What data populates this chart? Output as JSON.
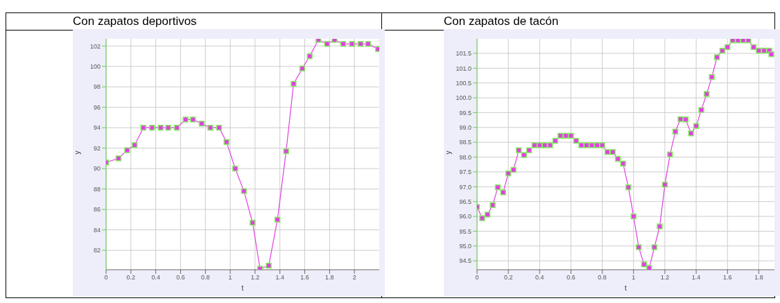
{
  "chart_data": [
    {
      "type": "line",
      "title": "Con zapatos deportivos",
      "xlabel": "t",
      "ylabel": "y",
      "marker": "square",
      "grid": true,
      "line_style": "solid",
      "xlim": [
        0,
        2.2
      ],
      "ylim": [
        80.1,
        102.7
      ],
      "xticks": [
        0,
        0.2,
        0.4,
        0.6,
        0.8,
        1.0,
        1.2,
        1.4,
        1.6,
        1.8,
        2.0
      ],
      "yticks": [
        82,
        84,
        86,
        88,
        90,
        92,
        94,
        96,
        98,
        100,
        102
      ],
      "series": [
        {
          "color": "#e040e0",
          "x": [
            0,
            0.1,
            0.17,
            0.23,
            0.3,
            0.37,
            0.44,
            0.5,
            0.57,
            0.64,
            0.7,
            0.77,
            0.84,
            0.91,
            0.97,
            1.04,
            1.11,
            1.18,
            1.24,
            1.31,
            1.38,
            1.45,
            1.51,
            1.58,
            1.64,
            1.71,
            1.78,
            1.84,
            1.91,
            1.98,
            2.05,
            2.11,
            2.19
          ],
          "values": [
            90.6,
            91.0,
            91.8,
            92.3,
            94.0,
            94.0,
            94.0,
            94.0,
            94.0,
            94.8,
            94.8,
            94.4,
            94.0,
            94.0,
            92.6,
            90.0,
            87.8,
            84.7,
            80.2,
            80.5,
            85.0,
            91.7,
            98.3,
            99.8,
            101.0,
            102.6,
            102.2,
            102.6,
            102.2,
            102.2,
            102.2,
            102.2,
            101.7
          ]
        }
      ]
    },
    {
      "type": "line",
      "title": "Con zapatos de tacón",
      "xlabel": "t",
      "ylabel": "y",
      "marker": "square",
      "grid": true,
      "line_style": "solid",
      "xlim": [
        0,
        1.9
      ],
      "ylim": [
        94.2,
        101.99
      ],
      "xticks": [
        0,
        0.2,
        0.4,
        0.6,
        0.8,
        1.0,
        1.2,
        1.4,
        1.6,
        1.8
      ],
      "yticks": [
        {
          "value": 94.5,
          "label": "94.5"
        },
        {
          "value": 95,
          "label": "95.0"
        },
        {
          "value": 95.5,
          "label": "95.5"
        },
        {
          "value": 96,
          "label": "96.0"
        },
        {
          "value": 96.5,
          "label": "96.5"
        },
        {
          "value": 97,
          "label": "97.0"
        },
        {
          "value": 97.5,
          "label": "97.5"
        },
        {
          "value": 98,
          "label": "98.0"
        },
        {
          "value": 98.5,
          "label": "98.5"
        },
        {
          "value": 99,
          "label": "99.0"
        },
        {
          "value": 99.5,
          "label": "99.5"
        },
        {
          "value": 100,
          "label": "100.0"
        },
        {
          "value": 100.5,
          "label": "100.5"
        },
        {
          "value": 101,
          "label": "101.0"
        },
        {
          "value": 101.5,
          "label": "101.5"
        }
      ],
      "series": [
        {
          "color": "#e040e0",
          "x": [
            0,
            0.033,
            0.067,
            0.1,
            0.133,
            0.167,
            0.2,
            0.233,
            0.267,
            0.3,
            0.333,
            0.367,
            0.4,
            0.433,
            0.467,
            0.5,
            0.533,
            0.567,
            0.6,
            0.633,
            0.667,
            0.7,
            0.733,
            0.767,
            0.8,
            0.833,
            0.867,
            0.9,
            0.933,
            0.967,
            1.0,
            1.033,
            1.067,
            1.1,
            1.133,
            1.167,
            1.2,
            1.233,
            1.267,
            1.3,
            1.333,
            1.367,
            1.4,
            1.433,
            1.467,
            1.5,
            1.533,
            1.567,
            1.6,
            1.633,
            1.667,
            1.7,
            1.733,
            1.767,
            1.8,
            1.833,
            1.867,
            1.88
          ],
          "values": [
            96.32,
            95.94,
            96.06,
            96.38,
            96.98,
            96.81,
            97.45,
            97.57,
            98.23,
            98.07,
            98.23,
            98.4,
            98.4,
            98.4,
            98.4,
            98.55,
            98.72,
            98.72,
            98.72,
            98.55,
            98.4,
            98.4,
            98.4,
            98.4,
            98.4,
            98.17,
            98.17,
            97.94,
            97.78,
            96.98,
            96.0,
            94.96,
            94.38,
            94.26,
            94.96,
            95.66,
            97.07,
            98.09,
            98.86,
            99.28,
            99.27,
            98.8,
            99.05,
            99.59,
            100.13,
            100.7,
            101.37,
            101.59,
            101.71,
            101.94,
            101.94,
            101.94,
            101.94,
            101.71,
            101.59,
            101.59,
            101.59,
            101.47
          ]
        }
      ]
    }
  ]
}
